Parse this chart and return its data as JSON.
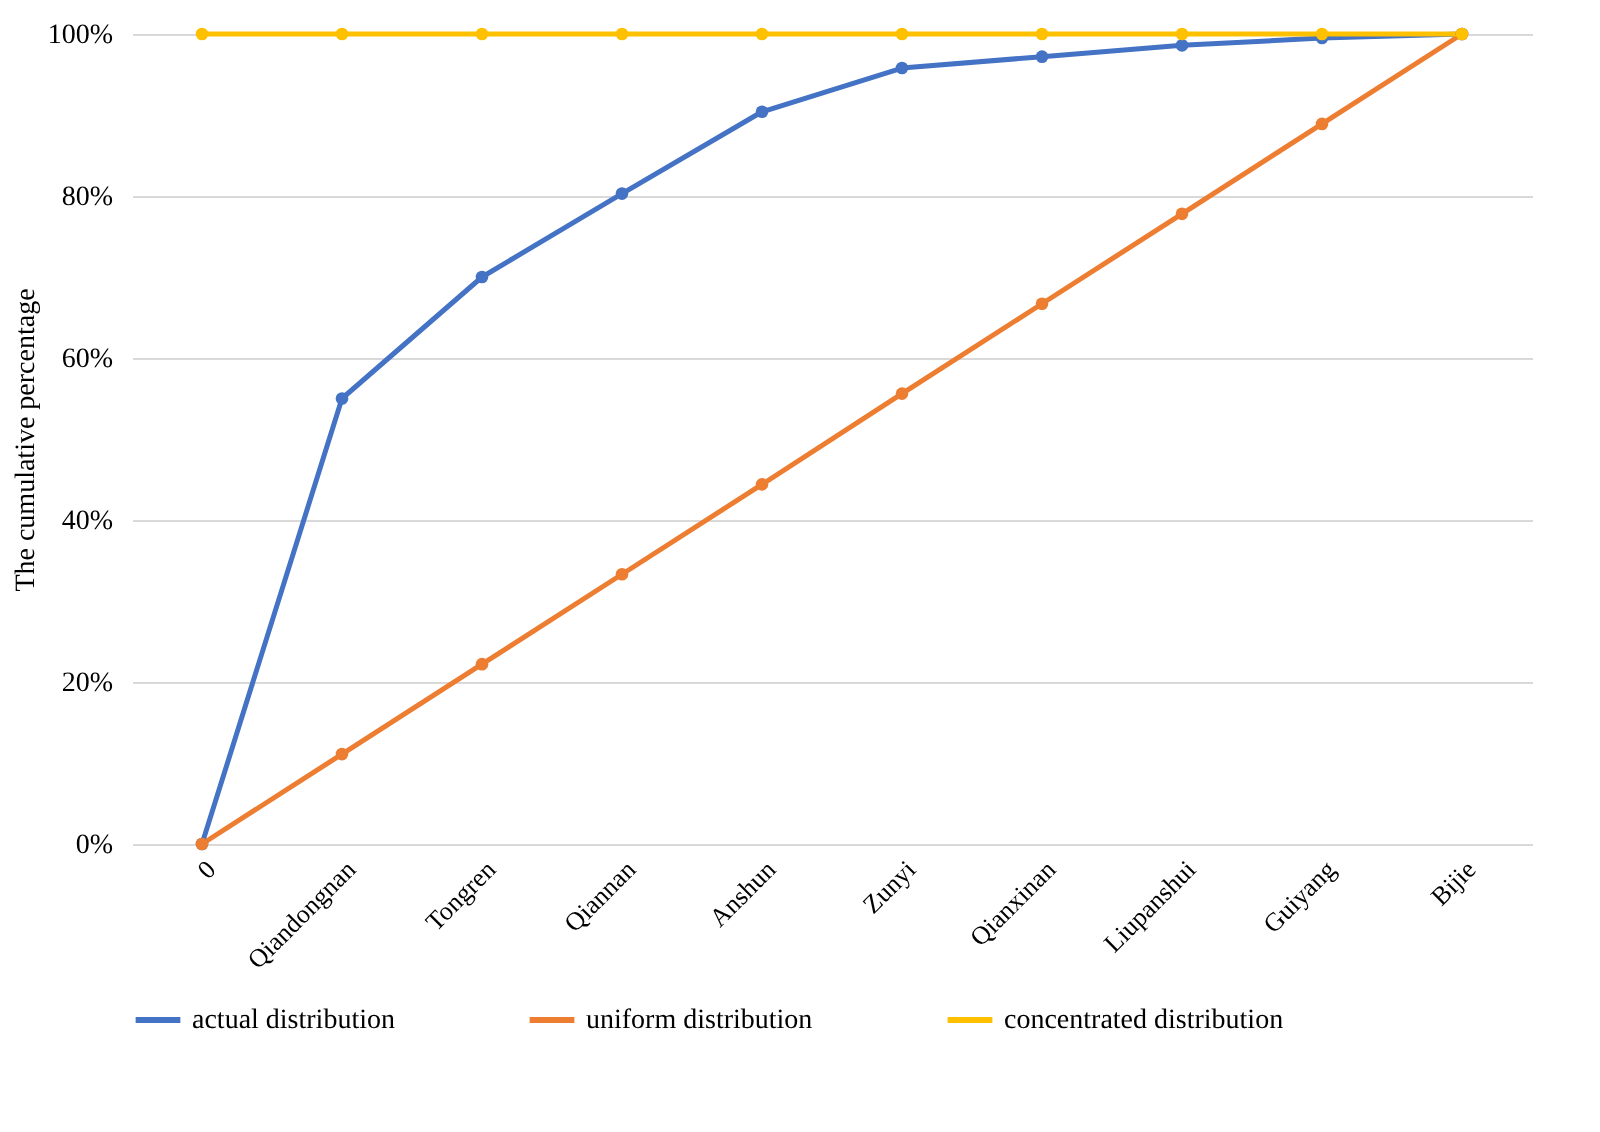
{
  "chart_data": {
    "type": "line",
    "ylabel": "The cumulative percentage",
    "categories": [
      "0",
      "Qiandongnan",
      "Tongren",
      "Qiannan",
      "Anshun",
      "Zunyi",
      "Qianxinan",
      "Liupanshui",
      "Guiyang",
      "Bijie"
    ],
    "series": [
      {
        "name": "actual distribution",
        "color": "#4472c4",
        "values": [
          0,
          55,
          70,
          80.3,
          90.4,
          95.8,
          97.2,
          98.6,
          99.5,
          100
        ]
      },
      {
        "name": "uniform distribution",
        "color": "#ed7d31",
        "values": [
          0,
          11.1,
          22.2,
          33.3,
          44.4,
          55.6,
          66.7,
          77.8,
          88.9,
          100
        ]
      },
      {
        "name": "concentrated distribution",
        "color": "#ffc000",
        "values": [
          100,
          100,
          100,
          100,
          100,
          100,
          100,
          100,
          100,
          100
        ]
      }
    ],
    "ylim": [
      0,
      100
    ],
    "yticks": [
      {
        "value": 0,
        "label": "0%"
      },
      {
        "value": 20,
        "label": "20%"
      },
      {
        "value": 40,
        "label": "40%"
      },
      {
        "value": 60,
        "label": "60%"
      },
      {
        "value": 80,
        "label": "80%"
      },
      {
        "value": 100,
        "label": "100%"
      }
    ],
    "grid": "y",
    "legend": "bottom",
    "marker": "circle",
    "line_style": "solid"
  }
}
